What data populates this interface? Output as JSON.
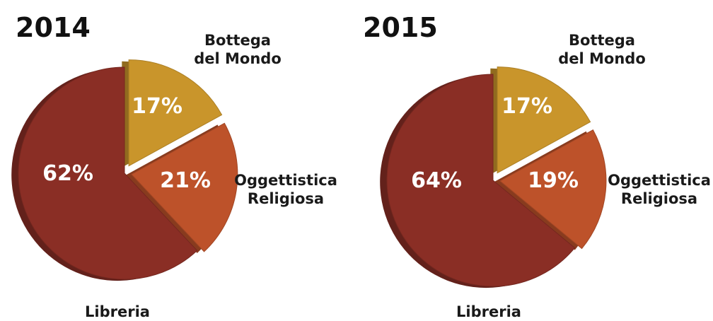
{
  "chart_data": [
    {
      "type": "pie",
      "title": "2014",
      "slices": [
        {
          "name": "Bottega del Mondo",
          "name_lines": [
            "Bottega",
            "del Mondo"
          ],
          "value": 17,
          "label": "17%",
          "color": "#C9952B"
        },
        {
          "name": "Oggettistica Religiosa",
          "name_lines": [
            "Oggettistica",
            "Religiosa"
          ],
          "value": 21,
          "label": "21%",
          "color": "#BD522A"
        },
        {
          "name": "Libreria",
          "name_lines": [
            "Libreria"
          ],
          "value": 62,
          "label": "62%",
          "color": "#8A2E25"
        }
      ]
    },
    {
      "type": "pie",
      "title": "2015",
      "slices": [
        {
          "name": "Bottega del Mondo",
          "name_lines": [
            "Bottega",
            "del Mondo"
          ],
          "value": 17,
          "label": "17%",
          "color": "#C9952B"
        },
        {
          "name": "Oggettistica Religiosa",
          "name_lines": [
            "Oggettistica",
            "Religiosa"
          ],
          "value": 19,
          "label": "19%",
          "color": "#BD522A"
        },
        {
          "name": "Libreria",
          "name_lines": [
            "Libreria"
          ],
          "value": 64,
          "label": "64%",
          "color": "#8A2E25"
        }
      ]
    }
  ]
}
